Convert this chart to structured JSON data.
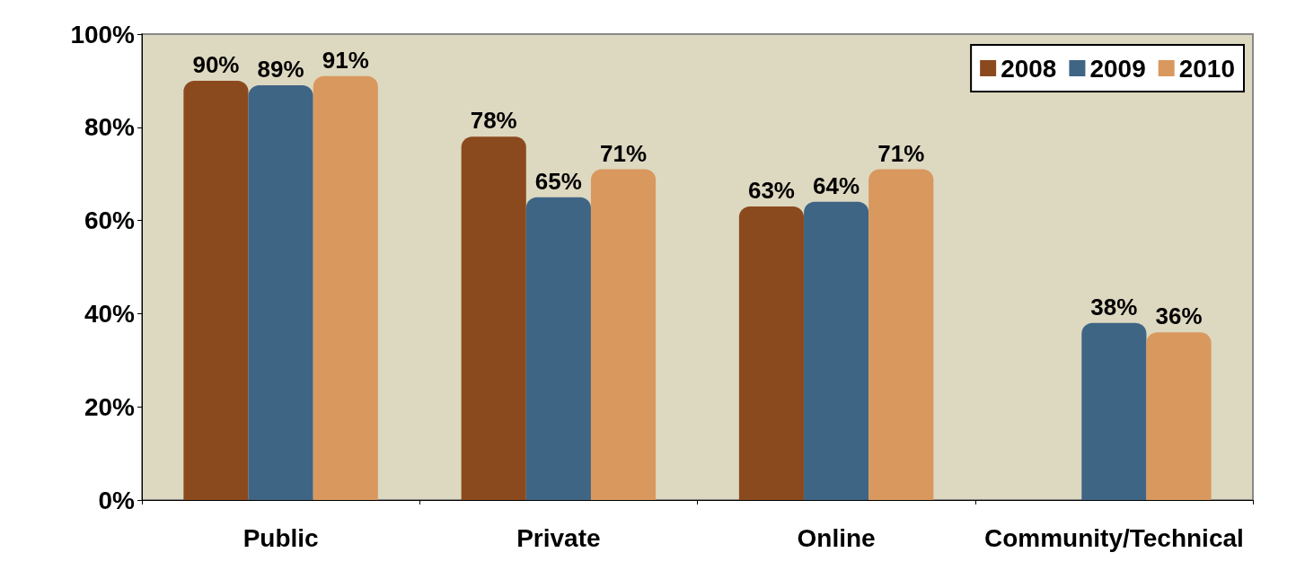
{
  "chart_data": {
    "type": "bar",
    "categories": [
      "Public",
      "Private",
      "Online",
      "Community/Technical"
    ],
    "series": [
      {
        "name": "2008",
        "color": "#8b4a1e",
        "values": [
          90,
          78,
          63,
          null
        ],
        "value_labels": [
          "90%",
          "78%",
          "63%",
          null
        ]
      },
      {
        "name": "2009",
        "color": "#3f6585",
        "values": [
          89,
          65,
          64,
          38
        ],
        "value_labels": [
          "89%",
          "65%",
          "64%",
          "38%"
        ]
      },
      {
        "name": "2010",
        "color": "#d9985e",
        "values": [
          91,
          71,
          71,
          36
        ],
        "value_labels": [
          "91%",
          "71%",
          "71%",
          "36%"
        ]
      }
    ],
    "ylim": [
      0,
      100
    ],
    "yticks": [
      {
        "value": 0,
        "label": "0%"
      },
      {
        "value": 20,
        "label": "20%"
      },
      {
        "value": 40,
        "label": "40%"
      },
      {
        "value": 60,
        "label": "60%"
      },
      {
        "value": 80,
        "label": "80%"
      },
      {
        "value": 100,
        "label": "100%"
      }
    ],
    "grid": false,
    "legend": "top right"
  }
}
